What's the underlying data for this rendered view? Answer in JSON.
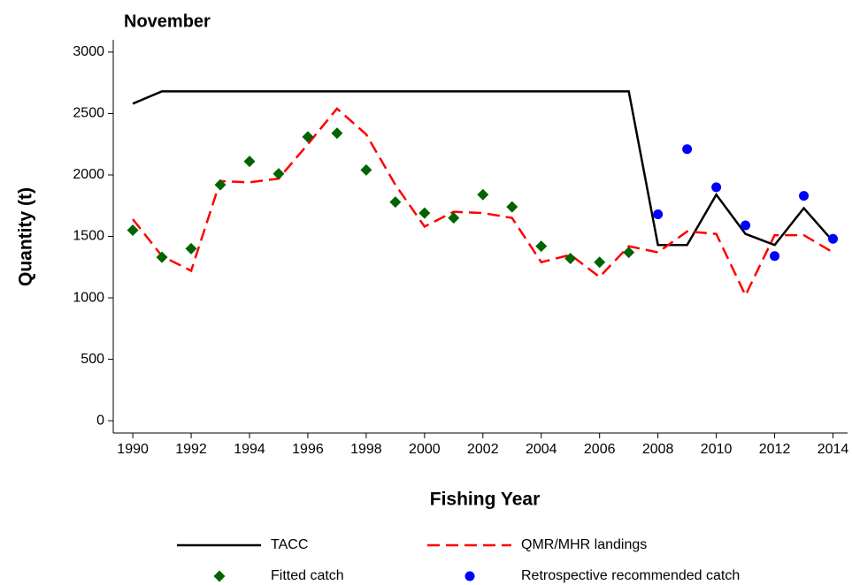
{
  "chart_data": {
    "type": "line",
    "title": "November",
    "xlabel": "Fishing Year",
    "ylabel": "Quantity (t)",
    "xlim": [
      1989.33,
      2014.5
    ],
    "ylim": [
      -100,
      3100
    ],
    "xticks": [
      1990,
      1992,
      1994,
      1996,
      1998,
      2000,
      2002,
      2004,
      2006,
      2008,
      2010,
      2012,
      2014
    ],
    "yticks": [
      0,
      500,
      1000,
      1500,
      2000,
      2500,
      3000
    ],
    "legend": "bottom",
    "series": [
      {
        "name": "TACC",
        "color": "#000000",
        "style": "solid",
        "x": [
          1990,
          1991,
          1992,
          1993,
          1994,
          1995,
          1996,
          1997,
          1998,
          1999,
          2000,
          2001,
          2002,
          2003,
          2004,
          2005,
          2006,
          2007,
          2008,
          2009,
          2010,
          2011,
          2012,
          2013,
          2014
        ],
        "values": [
          2580,
          2680,
          2680,
          2680,
          2680,
          2680,
          2680,
          2680,
          2680,
          2680,
          2680,
          2680,
          2680,
          2680,
          2680,
          2680,
          2680,
          2680,
          1430,
          1430,
          1840,
          1520,
          1430,
          1730,
          1460
        ]
      },
      {
        "name": "QMR/MHR landings",
        "color": "#ff0000",
        "style": "dashed",
        "x": [
          1990,
          1991,
          1992,
          1993,
          1994,
          1995,
          1996,
          1997,
          1998,
          1999,
          2000,
          2001,
          2002,
          2003,
          2004,
          2005,
          2006,
          2007,
          2008,
          2009,
          2010,
          2011,
          2012,
          2013,
          2014
        ],
        "values": [
          1640,
          1340,
          1220,
          1950,
          1940,
          1970,
          2250,
          2540,
          2330,
          1920,
          1580,
          1700,
          1690,
          1650,
          1290,
          1350,
          1170,
          1420,
          1370,
          1540,
          1520,
          1020,
          1510,
          1510,
          1370
        ]
      },
      {
        "name": "Fitted catch",
        "color": "#006400",
        "style": "diamond",
        "x": [
          1990,
          1991,
          1992,
          1993,
          1994,
          1995,
          1996,
          1997,
          1998,
          1999,
          2000,
          2001,
          2002,
          2003,
          2004,
          2005,
          2006,
          2007
        ],
        "values": [
          1550,
          1330,
          1400,
          1920,
          2110,
          2010,
          2310,
          2340,
          2040,
          1780,
          1690,
          1650,
          1840,
          1740,
          1420,
          1320,
          1290,
          1370
        ]
      },
      {
        "name": "Retrospective recommended catch",
        "color": "#0000ff",
        "style": "circle",
        "x": [
          2008,
          2009,
          2010,
          2011,
          2012,
          2013,
          2014
        ],
        "values": [
          1680,
          2210,
          1900,
          1590,
          1340,
          1830,
          1480
        ]
      }
    ]
  }
}
